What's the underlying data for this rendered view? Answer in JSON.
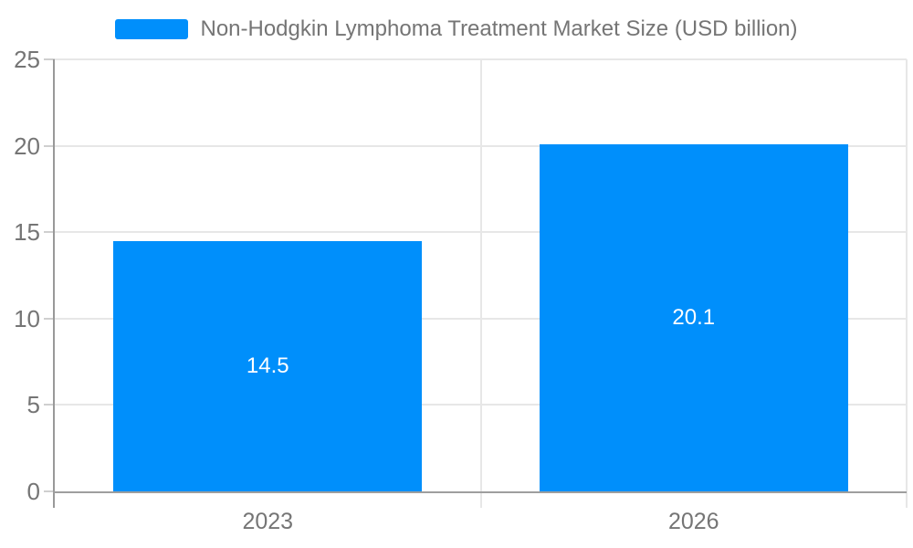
{
  "chart_data": {
    "type": "bar",
    "title": "Non-Hodgkin Lymphoma Treatment Market Size (USD billion)",
    "categories": [
      "2023",
      "2026"
    ],
    "values": [
      14.5,
      20.1
    ],
    "data_labels": [
      "14.5",
      "20.1"
    ],
    "xlabel": "",
    "ylabel": "",
    "ylim": [
      0,
      25
    ],
    "yticks": [
      0,
      5,
      10,
      15,
      20,
      25
    ],
    "grid": true,
    "legend_position": "top",
    "colors": {
      "bar": "#008ffb",
      "bar_label_text": "#ffffff",
      "axis_text": "#757575",
      "gridline": "#e7e7e7",
      "tick_mark": "#cfcfcf",
      "axis_line": "#999999",
      "baseline": "#9e9e9e",
      "background": "#ffffff"
    }
  }
}
